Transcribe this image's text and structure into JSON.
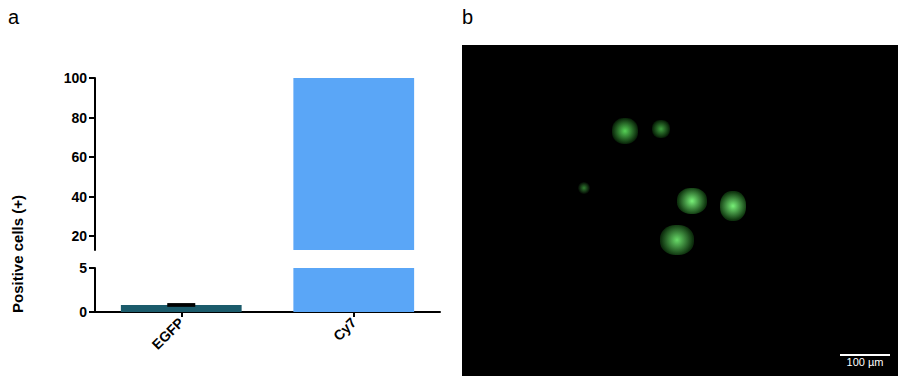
{
  "panel_labels": [
    "a",
    "b"
  ],
  "chart_data": {
    "type": "bar",
    "y_label": "Positive cells (+)",
    "categories": [
      "EGFP",
      "Cy7"
    ],
    "values": [
      0.8,
      100
    ],
    "errors": [
      0.1,
      0
    ],
    "colors": [
      "#1b5b6b",
      "#5aa6f7"
    ],
    "ylim": [
      0,
      100
    ],
    "yticks": [
      0,
      5,
      20,
      40,
      60,
      80,
      100
    ],
    "y_break": [
      5,
      13
    ]
  },
  "image": {
    "scale_bar": "100 µm"
  }
}
